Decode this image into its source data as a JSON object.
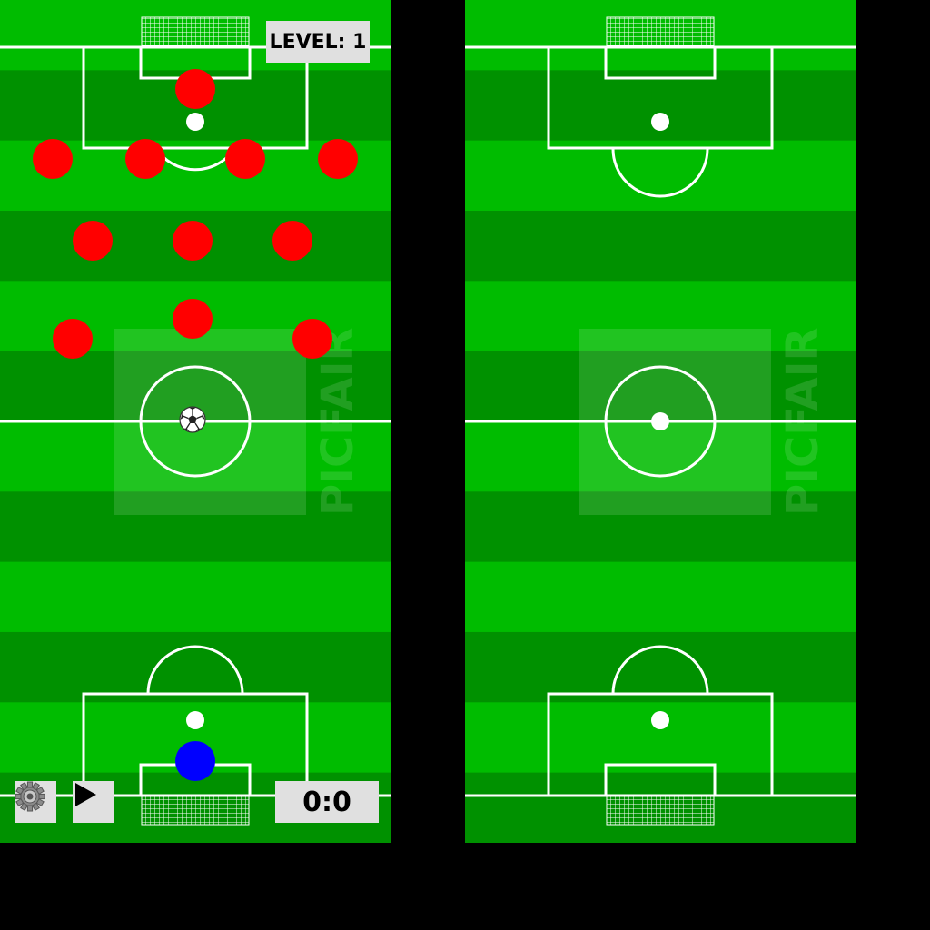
{
  "hud": {
    "level_label": "LEVEL: 1",
    "score": "0:0"
  },
  "controls": {
    "settings_icon": "gear-icon",
    "play_icon": "play-icon"
  },
  "teams": {
    "opponent": {
      "color": "#ff0000",
      "player_count": 11
    },
    "player": {
      "color": "#0000ff",
      "player_count": 1
    }
  },
  "ball": {
    "icon": "soccer-ball-icon"
  },
  "colors": {
    "pitch_light": "#00bc00",
    "pitch_dark": "#009100",
    "lines": "#ffffff",
    "ui_background": "#e0e0e0",
    "letterbox": "#000000"
  }
}
